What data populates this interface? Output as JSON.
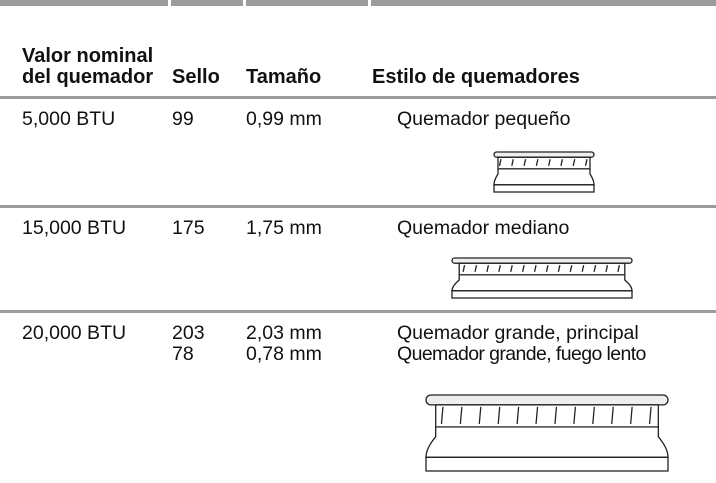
{
  "header": {
    "columns": [
      "Valor nominal del quemador",
      "Sello",
      "Tamaño",
      "Estilo de quemadores"
    ]
  },
  "rows": [
    {
      "rating": "5,000 BTU",
      "seal": [
        "99"
      ],
      "size": [
        "0,99 mm"
      ],
      "style": [
        "Quemador pequeño"
      ]
    },
    {
      "rating": "15,000 BTU",
      "seal": [
        "175"
      ],
      "size": [
        "1,75 mm"
      ],
      "style": [
        "Quemador mediano"
      ]
    },
    {
      "rating": "20,000 BTU",
      "seal": [
        "203",
        "78"
      ],
      "size": [
        "2,03 mm",
        "0,78 mm"
      ],
      "style": [
        "Quemador grande, principal",
        "Quemador grande, fuego lento"
      ]
    }
  ]
}
